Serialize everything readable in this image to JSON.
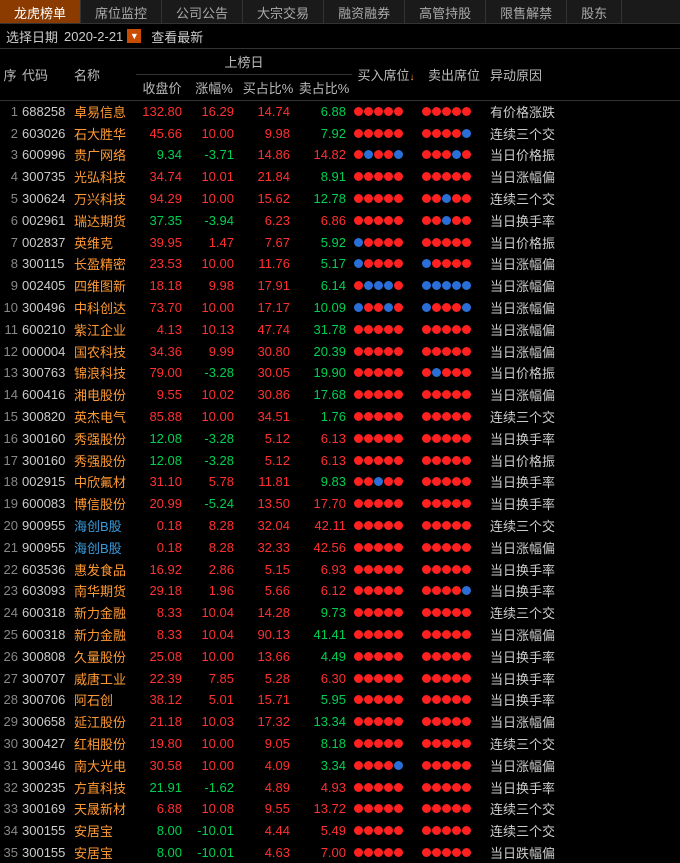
{
  "tabs": [
    "龙虎榜单",
    "席位监控",
    "公司公告",
    "大宗交易",
    "融资融券",
    "高管持股",
    "限售解禁",
    "股东"
  ],
  "activeTab": 0,
  "dateLabel": "选择日期",
  "dateValue": "2020-2-21",
  "latestBtn": "查看最新",
  "headers": {
    "idx": "序",
    "code": "代码",
    "name": "名称",
    "group": "上榜日",
    "close": "收盘价",
    "chg": "涨幅%",
    "buyPct": "买占比%",
    "sellPct": "卖占比%",
    "buySeat": "买入席位",
    "sellSeat": "卖出席位",
    "reason": "异动原因"
  },
  "rows": [
    {
      "idx": 1,
      "code": "688258",
      "name": "卓易信息",
      "close": "132.80",
      "chg": "16.29",
      "buyPct": "14.74",
      "sellPct": "6.88",
      "buy": "rrrrr",
      "sell": "rrrrr",
      "reason": "有价格涨跌",
      "cr": "red",
      "pr": "red",
      "br": "red",
      "sr": "green"
    },
    {
      "idx": 2,
      "code": "603026",
      "name": "石大胜华",
      "close": "45.66",
      "chg": "10.00",
      "buyPct": "9.98",
      "sellPct": "7.92",
      "buy": "rrrrr",
      "sell": "rrrrb",
      "reason": "连续三个交",
      "cr": "red",
      "pr": "red",
      "br": "red",
      "sr": "green"
    },
    {
      "idx": 3,
      "code": "600996",
      "name": "贵广网络",
      "close": "9.34",
      "chg": "-3.71",
      "buyPct": "14.86",
      "sellPct": "14.82",
      "buy": "rbrrb",
      "sell": "rrrbr",
      "reason": "当日价格振",
      "cr": "green",
      "pr": "green",
      "br": "red",
      "sr": "red"
    },
    {
      "idx": 4,
      "code": "300735",
      "name": "光弘科技",
      "close": "34.74",
      "chg": "10.01",
      "buyPct": "21.84",
      "sellPct": "8.91",
      "buy": "rrrrr",
      "sell": "rrrrr",
      "reason": "当日涨幅偏",
      "cr": "red",
      "pr": "red",
      "br": "red",
      "sr": "green"
    },
    {
      "idx": 5,
      "code": "300624",
      "name": "万兴科技",
      "close": "94.29",
      "chg": "10.00",
      "buyPct": "15.62",
      "sellPct": "12.78",
      "buy": "rrrrr",
      "sell": "rrbrr",
      "reason": "连续三个交",
      "cr": "red",
      "pr": "red",
      "br": "red",
      "sr": "green"
    },
    {
      "idx": 6,
      "code": "002961",
      "name": "瑞达期货",
      "close": "37.35",
      "chg": "-3.94",
      "buyPct": "6.23",
      "sellPct": "6.86",
      "buy": "rrrrr",
      "sell": "rrbrr",
      "reason": "当日换手率",
      "cr": "green",
      "pr": "green",
      "br": "red",
      "sr": "red"
    },
    {
      "idx": 7,
      "code": "002837",
      "name": "英维克",
      "close": "39.95",
      "chg": "1.47",
      "buyPct": "7.67",
      "sellPct": "5.92",
      "buy": "brrrr",
      "sell": "rrrrr",
      "reason": "当日价格振",
      "cr": "red",
      "pr": "red",
      "br": "red",
      "sr": "green"
    },
    {
      "idx": 8,
      "code": "300115",
      "name": "长盈精密",
      "close": "23.53",
      "chg": "10.00",
      "buyPct": "11.76",
      "sellPct": "5.17",
      "buy": "brrrr",
      "sell": "brrrr",
      "reason": "当日涨幅偏",
      "cr": "red",
      "pr": "red",
      "br": "red",
      "sr": "green"
    },
    {
      "idx": 9,
      "code": "002405",
      "name": "四维图新",
      "close": "18.18",
      "chg": "9.98",
      "buyPct": "17.91",
      "sellPct": "6.14",
      "buy": "rbbbr",
      "sell": "bbbbb",
      "reason": "当日涨幅偏",
      "cr": "red",
      "pr": "red",
      "br": "red",
      "sr": "green"
    },
    {
      "idx": 10,
      "code": "300496",
      "name": "中科创达",
      "close": "73.70",
      "chg": "10.00",
      "buyPct": "17.17",
      "sellPct": "10.09",
      "buy": "brrbr",
      "sell": "brrrb",
      "reason": "当日涨幅偏",
      "cr": "red",
      "pr": "red",
      "br": "red",
      "sr": "green"
    },
    {
      "idx": 11,
      "code": "600210",
      "name": "紫江企业",
      "close": "4.13",
      "chg": "10.13",
      "buyPct": "47.74",
      "sellPct": "31.78",
      "buy": "rrrrr",
      "sell": "rrrrr",
      "reason": "当日涨幅偏",
      "cr": "red",
      "pr": "red",
      "br": "red",
      "sr": "green"
    },
    {
      "idx": 12,
      "code": "000004",
      "name": "国农科技",
      "close": "34.36",
      "chg": "9.99",
      "buyPct": "30.80",
      "sellPct": "20.39",
      "buy": "rrrrr",
      "sell": "rrrrr",
      "reason": "当日涨幅偏",
      "cr": "red",
      "pr": "red",
      "br": "red",
      "sr": "green"
    },
    {
      "idx": 13,
      "code": "300763",
      "name": "锦浪科技",
      "close": "79.00",
      "chg": "-3.28",
      "buyPct": "30.05",
      "sellPct": "19.90",
      "buy": "rrrrr",
      "sell": "rbrrr",
      "reason": "当日价格振",
      "cr": "red",
      "pr": "green",
      "br": "red",
      "sr": "green"
    },
    {
      "idx": 14,
      "code": "600416",
      "name": "湘电股份",
      "close": "9.55",
      "chg": "10.02",
      "buyPct": "30.86",
      "sellPct": "17.68",
      "buy": "rrrrr",
      "sell": "rrrrr",
      "reason": "当日涨幅偏",
      "cr": "red",
      "pr": "red",
      "br": "red",
      "sr": "green"
    },
    {
      "idx": 15,
      "code": "300820",
      "name": "英杰电气",
      "close": "85.88",
      "chg": "10.00",
      "buyPct": "34.51",
      "sellPct": "1.76",
      "buy": "rrrrr",
      "sell": "rrrrr",
      "reason": "连续三个交",
      "cr": "red",
      "pr": "red",
      "br": "red",
      "sr": "green"
    },
    {
      "idx": 16,
      "code": "300160",
      "name": "秀强股份",
      "close": "12.08",
      "chg": "-3.28",
      "buyPct": "5.12",
      "sellPct": "6.13",
      "buy": "rrrrr",
      "sell": "rrrrr",
      "reason": "当日换手率",
      "cr": "green",
      "pr": "green",
      "br": "red",
      "sr": "red"
    },
    {
      "idx": 17,
      "code": "300160",
      "name": "秀强股份",
      "close": "12.08",
      "chg": "-3.28",
      "buyPct": "5.12",
      "sellPct": "6.13",
      "buy": "rrrrr",
      "sell": "rrrrr",
      "reason": "当日价格振",
      "cr": "green",
      "pr": "green",
      "br": "red",
      "sr": "red"
    },
    {
      "idx": 18,
      "code": "002915",
      "name": "中欣氟材",
      "close": "31.10",
      "chg": "5.78",
      "buyPct": "11.81",
      "sellPct": "9.83",
      "buy": "rrbrr",
      "sell": "rrrrr",
      "reason": "当日换手率",
      "cr": "red",
      "pr": "red",
      "br": "red",
      "sr": "green"
    },
    {
      "idx": 19,
      "code": "600083",
      "name": "博信股份",
      "close": "20.99",
      "chg": "-5.24",
      "buyPct": "13.50",
      "sellPct": "17.70",
      "buy": "rrrrr",
      "sell": "rrrrr",
      "reason": "当日换手率",
      "cr": "red",
      "pr": "green",
      "br": "red",
      "sr": "red"
    },
    {
      "idx": 20,
      "code": "900955",
      "name": "海创B股",
      "blue": true,
      "close": "0.18",
      "chg": "8.28",
      "buyPct": "32.04",
      "sellPct": "42.11",
      "buy": "rrrrr",
      "sell": "rrrrr",
      "reason": "连续三个交",
      "cr": "red",
      "pr": "red",
      "br": "red",
      "sr": "red"
    },
    {
      "idx": 21,
      "code": "900955",
      "name": "海创B股",
      "blue": true,
      "close": "0.18",
      "chg": "8.28",
      "buyPct": "32.33",
      "sellPct": "42.56",
      "buy": "rrrrr",
      "sell": "rrrrr",
      "reason": "当日涨幅偏",
      "cr": "red",
      "pr": "red",
      "br": "red",
      "sr": "red"
    },
    {
      "idx": 22,
      "code": "603536",
      "name": "惠发食品",
      "close": "16.92",
      "chg": "2.86",
      "buyPct": "5.15",
      "sellPct": "6.93",
      "buy": "rrrrr",
      "sell": "rrrrr",
      "reason": "当日换手率",
      "cr": "red",
      "pr": "red",
      "br": "red",
      "sr": "red"
    },
    {
      "idx": 23,
      "code": "603093",
      "name": "南华期货",
      "close": "29.18",
      "chg": "1.96",
      "buyPct": "5.66",
      "sellPct": "6.12",
      "buy": "rrrrr",
      "sell": "rrrrb",
      "reason": "当日换手率",
      "cr": "red",
      "pr": "red",
      "br": "red",
      "sr": "red"
    },
    {
      "idx": 24,
      "code": "600318",
      "name": "新力金融",
      "close": "8.33",
      "chg": "10.04",
      "buyPct": "14.28",
      "sellPct": "9.73",
      "buy": "rrrrr",
      "sell": "rrrrr",
      "reason": "连续三个交",
      "cr": "red",
      "pr": "red",
      "br": "red",
      "sr": "green"
    },
    {
      "idx": 25,
      "code": "600318",
      "name": "新力金融",
      "close": "8.33",
      "chg": "10.04",
      "buyPct": "90.13",
      "sellPct": "41.41",
      "buy": "rrrrr",
      "sell": "rrrrr",
      "reason": "当日涨幅偏",
      "cr": "red",
      "pr": "red",
      "br": "red",
      "sr": "green"
    },
    {
      "idx": 26,
      "code": "300808",
      "name": "久量股份",
      "close": "25.08",
      "chg": "10.00",
      "buyPct": "13.66",
      "sellPct": "4.49",
      "buy": "rrrrr",
      "sell": "rrrrr",
      "reason": "当日换手率",
      "cr": "red",
      "pr": "red",
      "br": "red",
      "sr": "green"
    },
    {
      "idx": 27,
      "code": "300707",
      "name": "威唐工业",
      "close": "22.39",
      "chg": "7.85",
      "buyPct": "5.28",
      "sellPct": "6.30",
      "buy": "rrrrr",
      "sell": "rrrrr",
      "reason": "当日换手率",
      "cr": "red",
      "pr": "red",
      "br": "red",
      "sr": "red"
    },
    {
      "idx": 28,
      "code": "300706",
      "name": "阿石创",
      "close": "38.12",
      "chg": "5.01",
      "buyPct": "15.71",
      "sellPct": "5.95",
      "buy": "rrrrr",
      "sell": "rrrrr",
      "reason": "当日换手率",
      "cr": "red",
      "pr": "red",
      "br": "red",
      "sr": "green"
    },
    {
      "idx": 29,
      "code": "300658",
      "name": "延江股份",
      "close": "21.18",
      "chg": "10.03",
      "buyPct": "17.32",
      "sellPct": "13.34",
      "buy": "rrrrr",
      "sell": "rrrrr",
      "reason": "当日涨幅偏",
      "cr": "red",
      "pr": "red",
      "br": "red",
      "sr": "green"
    },
    {
      "idx": 30,
      "code": "300427",
      "name": "红相股份",
      "close": "19.80",
      "chg": "10.00",
      "buyPct": "9.05",
      "sellPct": "8.18",
      "buy": "rrrrr",
      "sell": "rrrrr",
      "reason": "连续三个交",
      "cr": "red",
      "pr": "red",
      "br": "red",
      "sr": "green"
    },
    {
      "idx": 31,
      "code": "300346",
      "name": "南大光电",
      "close": "30.58",
      "chg": "10.00",
      "buyPct": "4.09",
      "sellPct": "3.34",
      "buy": "rrrrb",
      "sell": "rrrrr",
      "reason": "当日涨幅偏",
      "cr": "red",
      "pr": "red",
      "br": "red",
      "sr": "green"
    },
    {
      "idx": 32,
      "code": "300235",
      "name": "方直科技",
      "close": "21.91",
      "chg": "-1.62",
      "buyPct": "4.89",
      "sellPct": "4.93",
      "buy": "rrrrr",
      "sell": "rrrrr",
      "reason": "当日换手率",
      "cr": "green",
      "pr": "green",
      "br": "red",
      "sr": "red"
    },
    {
      "idx": 33,
      "code": "300169",
      "name": "天晟新材",
      "close": "6.88",
      "chg": "10.08",
      "buyPct": "9.55",
      "sellPct": "13.72",
      "buy": "rrrrr",
      "sell": "rrrrr",
      "reason": "连续三个交",
      "cr": "red",
      "pr": "red",
      "br": "red",
      "sr": "red"
    },
    {
      "idx": 34,
      "code": "300155",
      "name": "安居宝",
      "close": "8.00",
      "chg": "-10.01",
      "buyPct": "4.44",
      "sellPct": "5.49",
      "buy": "rrrrr",
      "sell": "rrrrr",
      "reason": "连续三个交",
      "cr": "green",
      "pr": "green",
      "br": "red",
      "sr": "red"
    },
    {
      "idx": 35,
      "code": "300155",
      "name": "安居宝",
      "close": "8.00",
      "chg": "-10.01",
      "buyPct": "4.63",
      "sellPct": "7.00",
      "buy": "rrrrr",
      "sell": "rrrrr",
      "reason": "当日跌幅偏",
      "cr": "green",
      "pr": "green",
      "br": "red",
      "sr": "red"
    }
  ]
}
